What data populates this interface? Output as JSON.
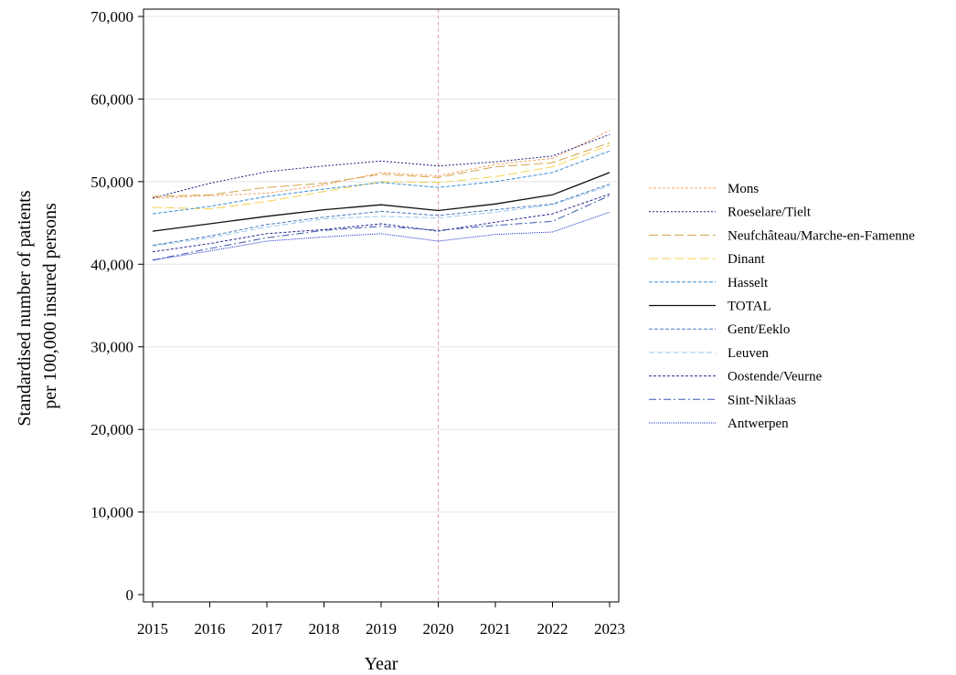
{
  "chart_data": {
    "type": "line",
    "xlabel": "Year",
    "ylabel_lines": [
      "Standardised number of patients",
      "per 100,000 insured persons"
    ],
    "x": [
      2015,
      2016,
      2017,
      2018,
      2019,
      2020,
      2021,
      2022,
      2023
    ],
    "x_tick_labels": [
      "2015",
      "2016",
      "2017",
      "2018",
      "2019",
      "2020",
      "2021",
      "2022",
      "2023"
    ],
    "ylim": [
      0,
      70000
    ],
    "y_ticks": [
      0,
      10000,
      20000,
      30000,
      40000,
      50000,
      60000,
      70000
    ],
    "y_tick_labels": [
      "0",
      "10,000",
      "20,000",
      "30,000",
      "40,000",
      "50,000",
      "60,000",
      "70,000"
    ],
    "grid": "horizontal",
    "reference_line_x": 2020,
    "reference_line_color": "#e8a0a8",
    "legend_position": "right",
    "series": [
      {
        "name": "Mons",
        "color": "#f4a460",
        "dash": "3,2",
        "width": 1,
        "values": [
          48000,
          48300,
          48600,
          49600,
          51100,
          50700,
          52100,
          52800,
          56200
        ]
      },
      {
        "name": "Roeselare/Tielt",
        "color": "#1a1a80",
        "dash": "2,2",
        "width": 1,
        "values": [
          48000,
          49800,
          51200,
          51900,
          52500,
          51900,
          52400,
          53100,
          55700
        ]
      },
      {
        "name": "Neufchâteau/Marche-en-Famenne",
        "color": "#d4a24c",
        "dash": "10,4",
        "width": 1,
        "values": [
          48200,
          48400,
          49300,
          49800,
          50900,
          50500,
          51800,
          52300,
          54700
        ]
      },
      {
        "name": "Dinant",
        "color": "#f7d34a",
        "dash": "10,4",
        "width": 1,
        "values": [
          46900,
          46700,
          47600,
          48800,
          50000,
          49900,
          50600,
          51800,
          54400
        ]
      },
      {
        "name": "Hasselt",
        "color": "#3b8fd4",
        "dash": "4,2",
        "width": 1,
        "values": [
          46100,
          47000,
          48200,
          49100,
          49900,
          49300,
          50000,
          51100,
          53700
        ]
      },
      {
        "name": "TOTAL",
        "color": "#111111",
        "dash": "",
        "width": 1.3,
        "values": [
          44000,
          44900,
          45800,
          46600,
          47200,
          46500,
          47300,
          48400,
          51100
        ]
      },
      {
        "name": "Gent/Eeklo",
        "color": "#4a7cc0",
        "dash": "4,2",
        "width": 1,
        "values": [
          42300,
          43400,
          44800,
          45700,
          46400,
          45900,
          46600,
          47300,
          49700
        ]
      },
      {
        "name": "Leuven",
        "color": "#9cc8e8",
        "dash": "6,3",
        "width": 1,
        "values": [
          42200,
          43200,
          44500,
          45500,
          45800,
          45600,
          46300,
          47200,
          49500
        ]
      },
      {
        "name": "Oostende/Veurne",
        "color": "#2a2a90",
        "dash": "3,2",
        "width": 1,
        "values": [
          41500,
          42500,
          43700,
          44200,
          44900,
          44000,
          45100,
          46100,
          48500
        ]
      },
      {
        "name": "Sint-Niklaas",
        "color": "#3a5ab0",
        "dash": "8,3,2,3",
        "width": 1,
        "values": [
          40500,
          41900,
          43200,
          44100,
          44600,
          44100,
          44700,
          45200,
          48300
        ]
      },
      {
        "name": "Antwerpen",
        "color": "#2233cc",
        "dash": "1,1",
        "width": 1,
        "values": [
          40500,
          41600,
          42800,
          43300,
          43700,
          42800,
          43600,
          43900,
          46300
        ]
      }
    ]
  }
}
